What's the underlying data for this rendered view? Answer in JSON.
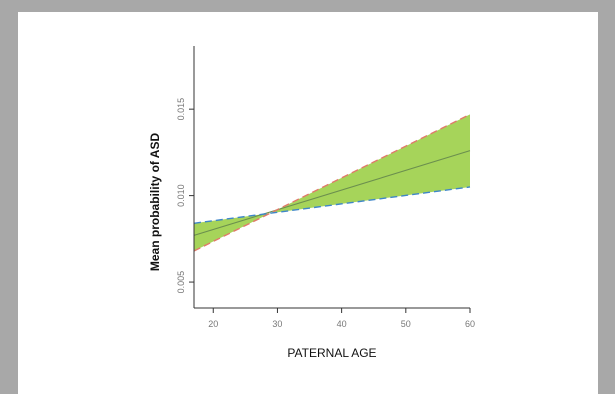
{
  "chart_data": {
    "type": "line",
    "title": "",
    "xlabel": "PATERNAL AGE",
    "ylabel": "Mean probability of ASD",
    "xlim": [
      17,
      60
    ],
    "ylim": [
      0.0035,
      0.019
    ],
    "x_ticks": [
      20,
      30,
      40,
      50,
      60
    ],
    "x_tick_labels": [
      "20",
      "30",
      "40",
      "50",
      "60"
    ],
    "y_ticks": [
      0.005,
      0.01,
      0.015
    ],
    "y_tick_labels": [
      "0.005",
      "0.010",
      "0.015"
    ],
    "grid": false,
    "legend": "none",
    "series": [
      {
        "role": "mean",
        "x": [
          17,
          60
        ],
        "y": [
          0.0077,
          0.0126
        ],
        "color": "#6b8f4e",
        "style": "solid"
      },
      {
        "role": "upper",
        "x": [
          17,
          60
        ],
        "y": [
          0.0068,
          0.0147
        ],
        "color": "#e07a6a",
        "style": "dashed"
      },
      {
        "role": "lower",
        "x": [
          17,
          60
        ],
        "y": [
          0.0084,
          0.0105
        ],
        "color": "#3f86c9",
        "style": "dashed"
      }
    ],
    "band_color": "#a6d45a"
  }
}
